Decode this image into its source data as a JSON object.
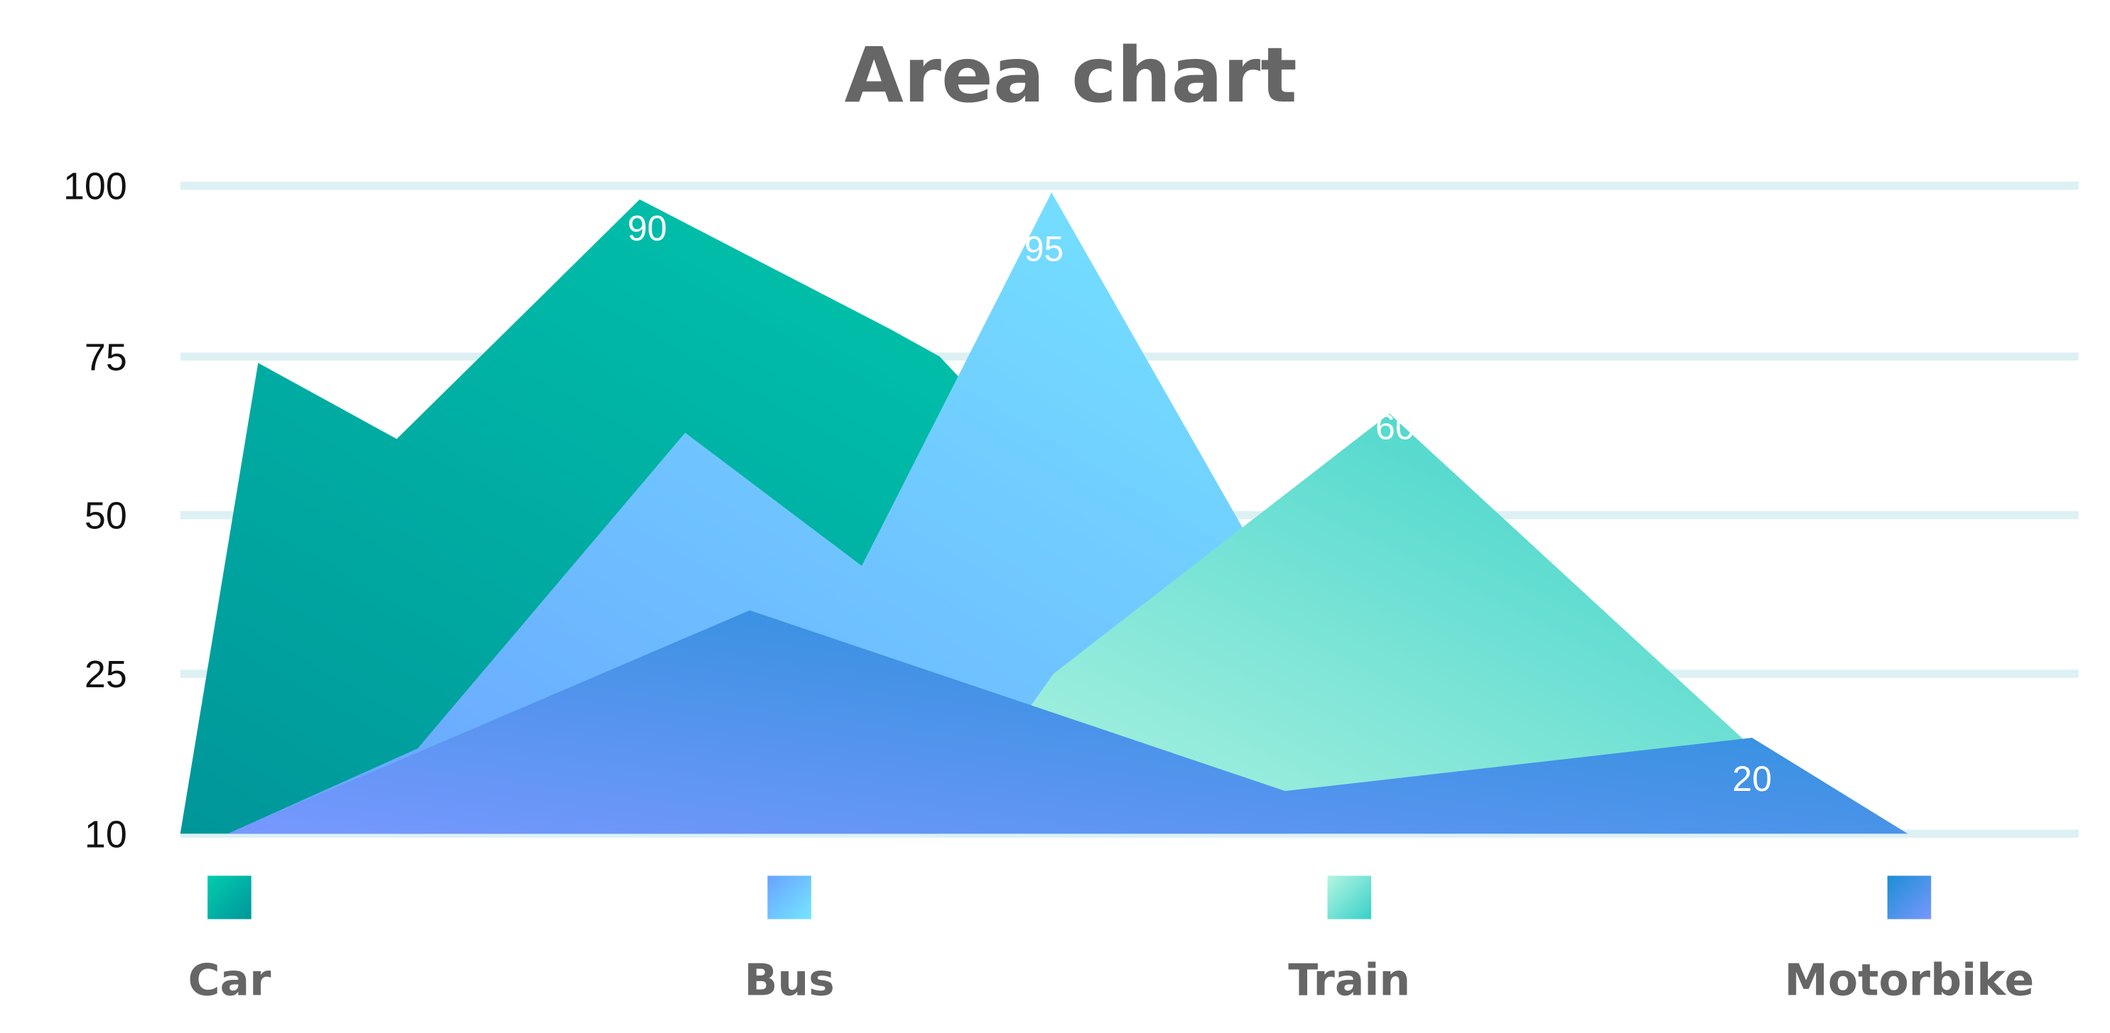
{
  "chart_data": {
    "type": "area",
    "title": "Area chart",
    "xlabel": "",
    "ylabel": "",
    "y_ticks": [
      "100",
      "75",
      "50",
      "25",
      "10"
    ],
    "grid": true,
    "legend_position": "bottom",
    "series": [
      {
        "name": "Car",
        "color_start": "#00CDAE",
        "color_end": "#00969A",
        "points": [
          [
            0.0,
            10
          ],
          [
            0.041,
            74
          ],
          [
            0.114,
            62
          ],
          [
            0.242,
            98
          ],
          [
            0.374,
            79
          ],
          [
            0.4,
            75
          ],
          [
            0.584,
            20
          ],
          [
            0.584,
            10
          ]
        ]
      },
      {
        "name": "Bus",
        "color_start": "#69A1FF",
        "color_end": "#75E6FF",
        "points": [
          [
            0.025,
            10
          ],
          [
            0.125,
            18
          ],
          [
            0.266,
            63
          ],
          [
            0.359,
            42
          ],
          [
            0.459,
            99
          ],
          [
            0.592,
            31
          ],
          [
            0.592,
            10
          ]
        ]
      },
      {
        "name": "Train",
        "color_start": "#B5F5E2",
        "color_end": "#37D0C8",
        "points": [
          [
            0.4,
            10
          ],
          [
            0.46,
            25
          ],
          [
            0.637,
            66
          ],
          [
            0.847,
            15
          ],
          [
            0.847,
            10
          ]
        ]
      },
      {
        "name": "Motorbike",
        "color_start": "#7898FF",
        "color_end": "#1B8ED3",
        "points": [
          [
            0.025,
            10
          ],
          [
            0.3,
            35
          ],
          [
            0.582,
            14
          ],
          [
            0.828,
            19
          ],
          [
            0.91,
            10
          ]
        ]
      }
    ],
    "data_labels": [
      {
        "text": "90",
        "x": 0.246,
        "y": 92
      },
      {
        "text": "95",
        "x": 0.455,
        "y": 89
      },
      {
        "text": "60",
        "x": 0.64,
        "y": 62
      },
      {
        "text": "20",
        "x": 0.828,
        "y": 14
      }
    ]
  }
}
